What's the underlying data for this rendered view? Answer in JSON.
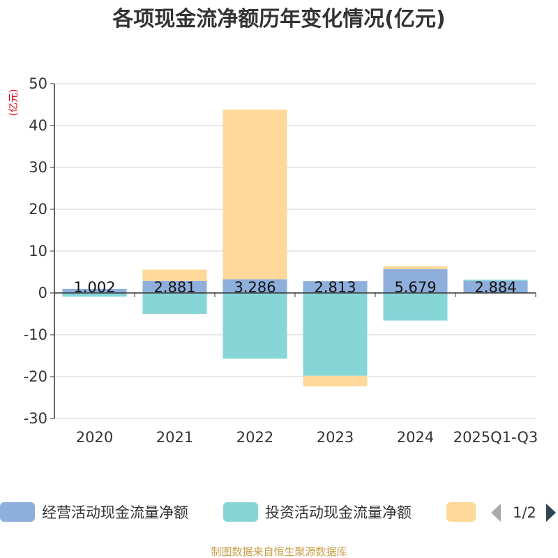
{
  "chart_data": {
    "type": "bar",
    "title": "各项现金流净额历年变化情况(亿元)",
    "ylabel": "(亿元)",
    "ylim": [
      -30,
      50
    ],
    "yticks": [
      50,
      40,
      30,
      20,
      10,
      0,
      -10,
      -20,
      -30
    ],
    "categories": [
      "2020",
      "2021",
      "2022",
      "2023",
      "2024",
      "2025Q1-Q3"
    ],
    "series": [
      {
        "name": "经营活动现金流量净额",
        "color": "#8eaedb",
        "values": [
          1.002,
          2.881,
          3.286,
          2.813,
          5.679,
          2.884
        ]
      },
      {
        "name": "投资活动现金流量净额",
        "color": "#86d6d8",
        "values": [
          -0.9,
          -5.0,
          -15.7,
          -19.8,
          -6.6,
          0.3
        ]
      },
      {
        "name": "",
        "color": "#fdd899",
        "values": [
          0,
          2.7,
          40.5,
          -2.5,
          0.7,
          0
        ]
      }
    ],
    "data_labels": [
      "1.002",
      "2.881",
      "3.286",
      "2.813",
      "5.679",
      "2.884"
    ],
    "legend": {
      "position": "bottom",
      "page_indicator": "1/2"
    }
  },
  "source_text": "制图数据来自恒生聚源数据库"
}
